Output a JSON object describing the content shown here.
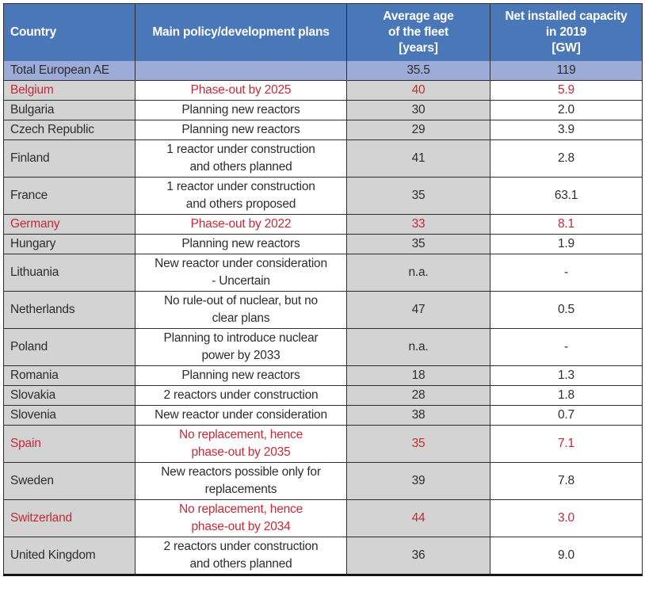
{
  "colors": {
    "header-bg": "#4A77B8",
    "total-row-bg": "#9DABD8",
    "shaded-col-bg": "#D3D3D3",
    "phaseout-red": "#C52A38",
    "body-text": "#2D2D2D",
    "border": "#2E2E2E"
  },
  "table": {
    "columns": [
      {
        "label": "Country"
      },
      {
        "label": "Main policy/development plans"
      },
      {
        "label": "Average age\nof the fleet\n[years]"
      },
      {
        "label": "Net installed capacity\nin 2019\n[GW]"
      }
    ],
    "rows": [
      {
        "country": "Total European AE",
        "policy": "",
        "age": "35.5",
        "capacity": "119",
        "type": "total",
        "highlight": false
      },
      {
        "country": "Belgium",
        "policy": "Phase-out by 2025",
        "age": "40",
        "capacity": "5.9",
        "highlight": true
      },
      {
        "country": "Bulgaria",
        "policy": "Planning new reactors",
        "age": "30",
        "capacity": "2.0",
        "highlight": false
      },
      {
        "country": "Czech Republic",
        "policy": "Planning new reactors",
        "age": "29",
        "capacity": "3.9",
        "highlight": false
      },
      {
        "country": "Finland",
        "policy": "1 reactor under construction\nand others planned",
        "age": "41",
        "capacity": "2.8",
        "highlight": false
      },
      {
        "country": "France",
        "policy": "1 reactor under construction\nand others proposed",
        "age": "35",
        "capacity": "63.1",
        "highlight": false
      },
      {
        "country": "Germany",
        "policy": "Phase-out by 2022",
        "age": "33",
        "capacity": "8.1",
        "highlight": true
      },
      {
        "country": "Hungary",
        "policy": "Planning new reactors",
        "age": "35",
        "capacity": "1.9",
        "highlight": false
      },
      {
        "country": "Lithuania",
        "policy": "New reactor under consideration\n- Uncertain",
        "age": "n.a.",
        "capacity": "-",
        "highlight": false
      },
      {
        "country": "Netherlands",
        "policy": "No rule-out of nuclear, but no\nclear plans",
        "age": "47",
        "capacity": "0.5",
        "highlight": false
      },
      {
        "country": "Poland",
        "policy": "Planning to introduce nuclear\npower by 2033",
        "age": "n.a.",
        "capacity": "-",
        "highlight": false
      },
      {
        "country": "Romania",
        "policy": "Planning new reactors",
        "age": "18",
        "capacity": "1.3",
        "highlight": false
      },
      {
        "country": "Slovakia",
        "policy": "2 reactors under construction",
        "age": "28",
        "capacity": "1.8",
        "highlight": false
      },
      {
        "country": "Slovenia",
        "policy": "New reactor under consideration",
        "age": "38",
        "capacity": "0.7",
        "highlight": false
      },
      {
        "country": "Spain",
        "policy": "No replacement, hence\nphase-out by 2035",
        "age": "35",
        "capacity": "7.1",
        "highlight": true
      },
      {
        "country": "Sweden",
        "policy": "New reactors possible only for\nreplacements",
        "age": "39",
        "capacity": "7.8",
        "highlight": false
      },
      {
        "country": "Switzerland",
        "policy": "No replacement, hence\nphase-out by 2034",
        "age": "44",
        "capacity": "3.0",
        "highlight": true
      },
      {
        "country": "United Kingdom",
        "policy": "2 reactors under construction\nand others planned",
        "age": "36",
        "capacity": "9.0",
        "highlight": false
      }
    ]
  }
}
